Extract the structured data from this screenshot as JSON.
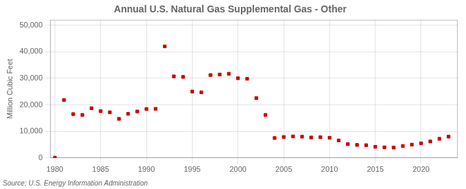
{
  "chart_data": {
    "type": "scatter",
    "title": "Annual U.S. Natural Gas Supplemental Gas - Other",
    "ylabel": "Million Cubic Feet",
    "annotations": [
      "Source: U.S. Energy Information Administration"
    ],
    "x": [
      1980,
      1981,
      1982,
      1983,
      1984,
      1985,
      1986,
      1987,
      1988,
      1989,
      1990,
      1991,
      1992,
      1993,
      1994,
      1995,
      1996,
      1997,
      1998,
      1999,
      2000,
      2001,
      2002,
      2003,
      2004,
      2005,
      2006,
      2007,
      2008,
      2009,
      2010,
      2011,
      2012,
      2013,
      2014,
      2015,
      2016,
      2017,
      2018,
      2019,
      2020,
      2021,
      2022,
      2023
    ],
    "values": [
      100,
      21800,
      16500,
      16200,
      18700,
      17600,
      17200,
      14700,
      16600,
      17500,
      18400,
      18500,
      42000,
      30700,
      30500,
      25000,
      24700,
      31200,
      31400,
      31700,
      30000,
      29800,
      22500,
      16200,
      7500,
      7900,
      8100,
      8000,
      7700,
      7800,
      7600,
      6600,
      5200,
      4900,
      4800,
      4200,
      4000,
      3900,
      4500,
      5000,
      5500,
      6200,
      7200,
      8000
    ],
    "color": "#cc0000",
    "marker": "square",
    "xlim": [
      1979.5,
      2024
    ],
    "ylim": [
      0,
      52000
    ],
    "xticks": [
      1980,
      1985,
      1990,
      1995,
      2000,
      2005,
      2010,
      2015,
      2020
    ],
    "yticks": [
      0,
      {
        "value": 10000,
        "label": "10,000"
      },
      {
        "value": 20000,
        "label": "20,000"
      },
      {
        "value": 30000,
        "label": "30,000"
      },
      {
        "value": 40000,
        "label": "40,000"
      },
      {
        "value": 50000,
        "label": "50,000"
      }
    ],
    "grid": true
  }
}
